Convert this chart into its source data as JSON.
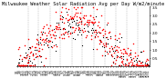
{
  "title": "Milwaukee Weather Solar Radiation Avg per Day W/m2/minute",
  "title_fontsize": 3.8,
  "background_color": "#ffffff",
  "plot_bg_color": "#ffffff",
  "grid_color": "#888888",
  "red_color": "#ff0000",
  "black_color": "#000000",
  "ylim": [
    0,
    3.5
  ],
  "ytick_values": [
    0.5,
    1.0,
    1.5,
    2.0,
    2.5,
    3.0,
    3.5
  ],
  "ytick_labels": [
    "0.5",
    "1.0",
    "1.5",
    "2.0",
    "2.5",
    "3.0",
    "3.5"
  ],
  "num_points": 365,
  "seed": 42,
  "marker_size_red": 1.2,
  "marker_size_black": 0.8
}
